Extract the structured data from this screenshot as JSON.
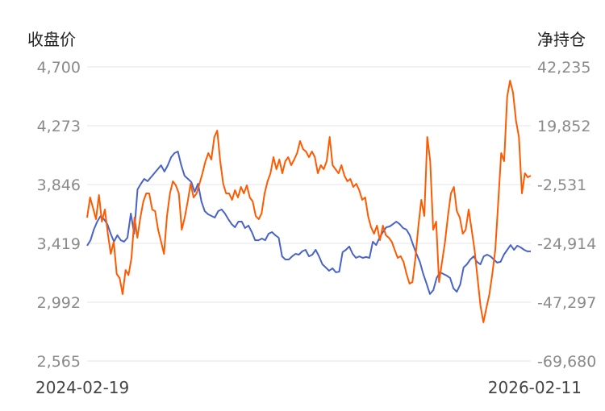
{
  "chart_data": {
    "type": "line",
    "left_axis": {
      "label": "收盘价",
      "ylim": [
        2565,
        4700
      ],
      "ticks": [
        "4,700",
        "4,273",
        "3,846",
        "3,419",
        "2,992",
        "2,565"
      ]
    },
    "right_axis": {
      "label": "净持仓",
      "ylim": [
        -69680,
        42235
      ],
      "ticks": [
        "42,235",
        "19,852",
        "-2,531",
        "-24,914",
        "-47,297",
        "-69,680"
      ]
    },
    "x_tick_labels": [
      "2024-02-19",
      "2026-02-11"
    ],
    "grid": true,
    "series": [
      {
        "axis": "left",
        "color": "#4a63c8",
        "values": [
          3402,
          3442,
          3519,
          3577,
          3618,
          3595,
          3560,
          3489,
          3431,
          3478,
          3442,
          3431,
          3460,
          3636,
          3489,
          3811,
          3852,
          3887,
          3870,
          3899,
          3928,
          3957,
          3986,
          3940,
          3986,
          4045,
          4074,
          4086,
          3986,
          3910,
          3887,
          3864,
          3793,
          3852,
          3723,
          3653,
          3630,
          3618,
          3606,
          3653,
          3665,
          3636,
          3595,
          3559,
          3536,
          3577,
          3577,
          3530,
          3548,
          3501,
          3442,
          3442,
          3454,
          3442,
          3489,
          3501,
          3478,
          3460,
          3325,
          3302,
          3302,
          3325,
          3343,
          3337,
          3361,
          3372,
          3325,
          3337,
          3372,
          3325,
          3267,
          3244,
          3220,
          3238,
          3209,
          3213,
          3355,
          3372,
          3396,
          3343,
          3314,
          3325,
          3314,
          3320,
          3314,
          3431,
          3407,
          3460,
          3501,
          3536,
          3542,
          3559,
          3577,
          3559,
          3530,
          3519,
          3478,
          3407,
          3343,
          3285,
          3197,
          3127,
          3051,
          3080,
          3168,
          3209,
          3197,
          3185,
          3168,
          3092,
          3068,
          3120,
          3244,
          3267,
          3302,
          3325,
          3285,
          3267,
          3325,
          3337,
          3325,
          3302,
          3279,
          3285,
          3337,
          3372,
          3407,
          3372,
          3402,
          3390,
          3372,
          3361,
          3361
        ]
      },
      {
        "axis": "right",
        "color": "#ff5a00",
        "values": [
          -15099,
          -7434,
          -11420,
          -15712,
          -6514,
          -16632,
          -12033,
          -21231,
          -28896,
          -24297,
          -36561,
          -38094,
          -44226,
          -35028,
          -37000,
          -30429,
          -15099,
          -22764,
          -15099,
          -8967,
          -5901,
          -5901,
          -12033,
          -12646,
          -19698,
          -24297,
          -28896,
          -14486,
          -5901,
          -1302,
          -2835,
          -5901,
          -19698,
          -15099,
          -8967,
          -2222,
          -7434,
          -5901,
          -2222,
          1764,
          6363,
          9429,
          7000,
          15561,
          18014,
          6363,
          -2222,
          -5901,
          -5901,
          -8354,
          -4675,
          -7434,
          -3448,
          -5901,
          -2835,
          -7434,
          -8967,
          -14486,
          -15712,
          -13500,
          -5901,
          -1302,
          1764,
          7896,
          3297,
          6976,
          1764,
          6363,
          7896,
          4830,
          6976,
          9429,
          14028,
          10962,
          10042,
          7896,
          10042,
          7896,
          1764,
          4830,
          3297,
          6363,
          15561,
          4830,
          3297,
          1764,
          4830,
          844,
          -1302,
          -382,
          -3448,
          -2222,
          -4675,
          -8354,
          -7434,
          -14486,
          -18778,
          -21231,
          -18165,
          -23684,
          -18165,
          -21800,
          -22764,
          -24297,
          -27363,
          -30429,
          -29800,
          -31962,
          -36561,
          -40240,
          -39627,
          -30429,
          -18165,
          -8354,
          -14486,
          15561,
          6363,
          -19698,
          -16632,
          -39627,
          -31962,
          -24297,
          -14486,
          -5901,
          -3448,
          -12646,
          -15099,
          -21231,
          -19698,
          -12033,
          -19698,
          -27363,
          -38094,
          -48825,
          -54957,
          -49400,
          -44226,
          -36561,
          -27363,
          -8967,
          9429,
          6363,
          30891,
          37023,
          32424,
          21693,
          15561,
          -5901,
          1764,
          231,
          844
        ]
      }
    ]
  }
}
